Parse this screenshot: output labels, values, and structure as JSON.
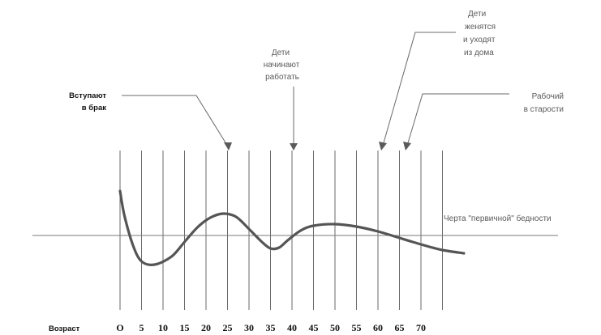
{
  "chart_data": {
    "type": "line",
    "x_axis_label": "Возраст",
    "x_ticks": [
      "O",
      "5",
      "10",
      "15",
      "20",
      "25",
      "30",
      "35",
      "40",
      "45",
      "50",
      "55",
      "60",
      "65",
      "70"
    ],
    "line_label": "Черта \"первичной\" бедности",
    "series": [
      {
        "x": [
          0,
          1,
          3,
          5,
          8,
          12,
          15,
          18,
          21,
          24,
          27,
          30,
          33,
          35,
          37,
          39,
          42,
          45,
          50,
          55,
          60,
          65,
          70,
          75,
          80
        ],
        "y": [
          55,
          25,
          -12,
          -32,
          -36,
          -26,
          -8,
          10,
          22,
          27,
          23,
          8,
          -8,
          -16,
          -15,
          -6,
          6,
          12,
          14,
          11,
          5,
          -3,
          -11,
          -18,
          -22
        ]
      }
    ],
    "annotations": [
      {
        "text": [
          "Вступают",
          "в брак"
        ],
        "age": 25
      },
      {
        "text": [
          "Дети",
          "начинают",
          "работать"
        ],
        "age": 40
      },
      {
        "text": [
          "Дети",
          "женятся",
          "и уходят",
          "из дома"
        ],
        "age": 60
      },
      {
        "text": [
          "Рабочий",
          "в старости"
        ],
        "age": 65
      }
    ]
  }
}
